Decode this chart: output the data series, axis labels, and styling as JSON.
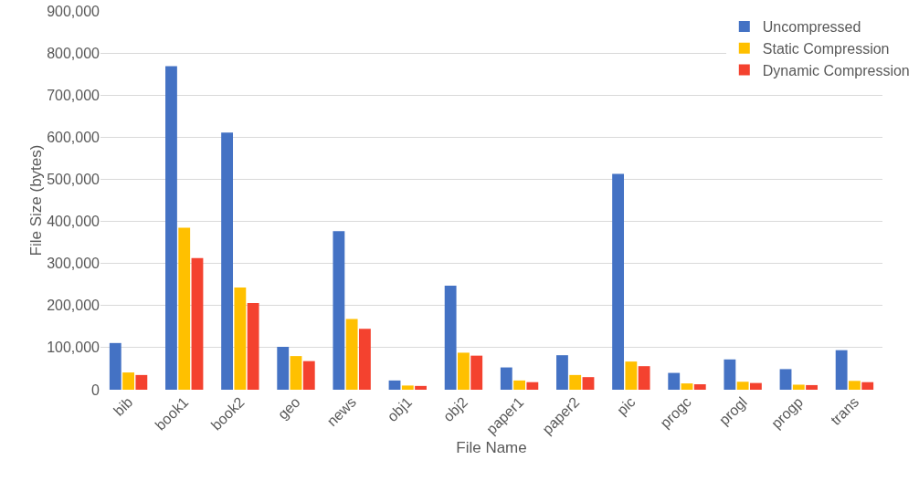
{
  "chart_data": {
    "type": "bar",
    "xlabel": "File Name",
    "ylabel": "File Size (bytes)",
    "categories": [
      "bib",
      "book1",
      "book2",
      "geo",
      "news",
      "obj1",
      "obj2",
      "paper1",
      "paper2",
      "pic",
      "progc",
      "progl",
      "progp",
      "trans"
    ],
    "series": [
      {
        "name": "Uncompressed",
        "color": "#4472c4",
        "values": [
          111000,
          769000,
          611000,
          102000,
          377000,
          22000,
          247000,
          53000,
          82000,
          513000,
          40000,
          72000,
          49000,
          94000
        ]
      },
      {
        "name": "Static Compression",
        "color": "#ffc000",
        "values": [
          41000,
          385000,
          243000,
          80000,
          168000,
          10000,
          88000,
          22000,
          35000,
          67000,
          15000,
          19000,
          12000,
          21000
        ]
      },
      {
        "name": "Dynamic Compression",
        "color": "#f4422f",
        "values": [
          35000,
          313000,
          206000,
          68000,
          145000,
          9000,
          81000,
          18000,
          30000,
          56000,
          13000,
          16000,
          11000,
          18000
        ]
      }
    ],
    "ylim": [
      0,
      900000
    ],
    "yticks": [
      {
        "value": 0,
        "label": "0"
      },
      {
        "value": 100000,
        "label": "100,000"
      },
      {
        "value": 200000,
        "label": "200,000"
      },
      {
        "value": 300000,
        "label": "300,000"
      },
      {
        "value": 400000,
        "label": "400,000"
      },
      {
        "value": 500000,
        "label": "500,000"
      },
      {
        "value": 600000,
        "label": "600,000"
      },
      {
        "value": 700000,
        "label": "700,000"
      },
      {
        "value": 800000,
        "label": "800,000"
      },
      {
        "value": 900000,
        "label": "900,000"
      }
    ],
    "grid": "y",
    "legend": "top right"
  }
}
